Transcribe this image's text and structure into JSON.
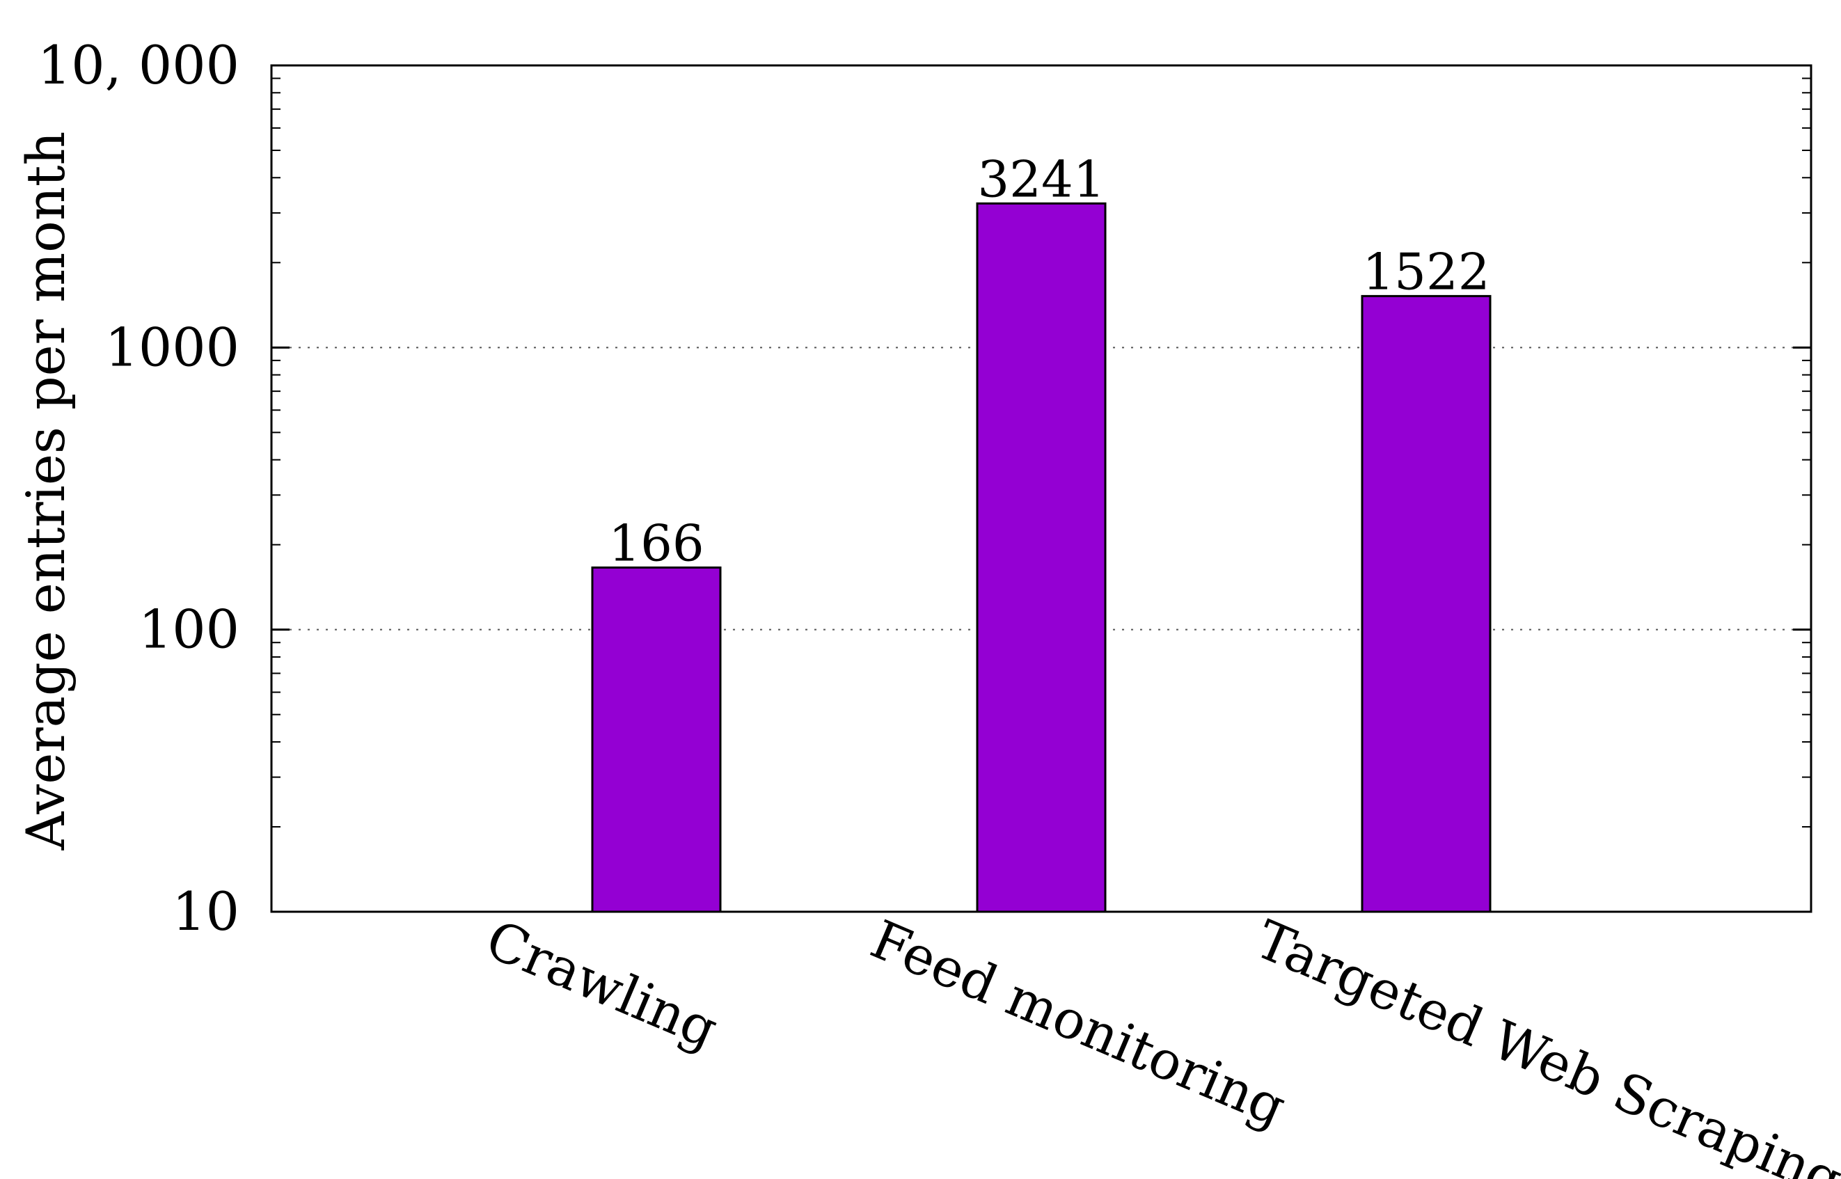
{
  "chart_data": {
    "type": "bar",
    "title": "",
    "xlabel": "",
    "ylabel": "Average entries per month",
    "yscale": "log",
    "ylim": [
      10,
      10000
    ],
    "categories": [
      "Crawling",
      "Feed monitoring",
      "Targeted Web Scraping"
    ],
    "values": [
      166,
      3241,
      1522
    ],
    "data_labels": [
      "166",
      "3241",
      "1522"
    ],
    "major_ticks": [
      {
        "value": 10,
        "label": "10"
      },
      {
        "value": 100,
        "label": "100"
      },
      {
        "value": 1000,
        "label": "1000"
      },
      {
        "value": 10000,
        "label": "10, 000"
      }
    ],
    "grid": "horizontal-dotted-major",
    "legend": "none",
    "bar_color": "#9400d3"
  }
}
